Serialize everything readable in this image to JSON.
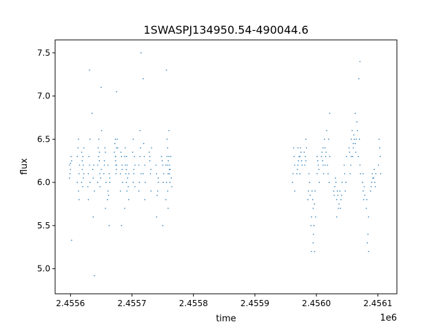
{
  "chart_data": {
    "type": "scatter",
    "title": "1SWASPJ134950.54-490044.6",
    "xlabel": "time",
    "ylabel": "flux",
    "x_offset_label": "1e6",
    "xlim": [
      2455575,
      2456131
    ],
    "ylim": [
      4.71,
      7.65
    ],
    "xticks": [
      2455600,
      2455700,
      2455800,
      2455900,
      2456000,
      2456100
    ],
    "xtick_labels": [
      "2.4556",
      "2.4557",
      "2.4558",
      "2.4559",
      "2.4560",
      "2.4561"
    ],
    "yticks": [
      5.0,
      5.5,
      6.0,
      6.5,
      7.0,
      7.5
    ],
    "ytick_labels": [
      "5.0",
      "5.5",
      "6.0",
      "6.5",
      "7.0",
      "7.5"
    ],
    "grid": false,
    "marker_color": "#1f77b4",
    "nights": [
      {
        "t": 2455600,
        "flux": [
          6.2,
          6.15,
          6.25,
          6.1,
          6.3,
          6.05,
          6.22,
          5.33
        ]
      },
      {
        "t": 2455613,
        "flux": [
          6.1,
          6.3,
          5.9,
          6.2,
          6.4,
          5.8,
          6.0,
          6.5
        ]
      },
      {
        "t": 2455620,
        "flux": [
          6.15,
          6.2,
          6.0,
          6.3,
          6.1,
          6.25,
          6.05,
          6.35,
          5.95,
          6.4
        ]
      },
      {
        "t": 2455630,
        "flux": [
          6.0,
          6.1,
          6.2,
          5.95,
          6.3,
          6.5,
          5.8,
          7.3
        ]
      },
      {
        "t": 2455637,
        "flux": [
          6.05,
          5.9,
          6.15,
          6.2,
          6.8,
          5.6,
          4.92
        ]
      },
      {
        "t": 2455646,
        "flux": [
          6.2,
          6.3,
          6.1,
          6.4,
          6.25,
          6.0,
          6.5
        ]
      },
      {
        "t": 2455649,
        "flux": [
          6.15,
          6.35,
          6.05,
          6.6,
          5.95,
          7.1
        ]
      },
      {
        "t": 2455656,
        "flux": [
          6.2,
          6.35,
          6.1,
          6.4,
          6.0,
          6.25,
          5.7
        ]
      },
      {
        "t": 2455662,
        "flux": [
          6.0,
          5.9,
          6.1,
          5.8,
          5.85,
          6.05,
          6.2,
          5.5
        ]
      },
      {
        "t": 2455673,
        "flux": [
          6.3,
          6.4,
          6.45,
          6.2,
          6.35,
          6.5,
          6.15
        ]
      },
      {
        "t": 2455675,
        "flux": [
          6.3,
          6.2,
          6.4,
          6.1,
          6.5,
          6.25,
          7.05
        ]
      },
      {
        "t": 2455683,
        "flux": [
          6.2,
          6.1,
          6.3,
          6.0,
          6.35,
          6.15,
          5.9,
          5.5
        ]
      },
      {
        "t": 2455690,
        "flux": [
          6.2,
          6.0,
          6.3,
          6.1,
          5.9,
          6.4,
          6.15,
          5.7
        ]
      },
      {
        "t": 2455693,
        "flux": [
          6.1,
          6.2,
          5.95,
          6.3,
          6.05,
          5.8
        ]
      },
      {
        "t": 2455703,
        "flux": [
          6.1,
          6.2,
          6.0,
          6.3,
          6.35,
          6.15,
          5.95,
          6.5
        ]
      },
      {
        "t": 2455713,
        "flux": [
          6.2,
          6.3,
          6.1,
          6.0,
          6.4,
          5.9,
          6.6,
          7.5
        ]
      },
      {
        "t": 2455720,
        "flux": [
          6.2,
          6.1,
          6.3,
          6.0,
          6.45,
          5.8,
          7.2
        ]
      },
      {
        "t": 2455730,
        "flux": [
          6.25,
          6.15,
          6.35,
          6.1,
          6.4,
          6.3,
          5.9
        ]
      },
      {
        "t": 2455741,
        "flux": [
          6.0,
          6.1,
          5.9,
          6.2,
          5.85,
          6.05,
          5.6
        ]
      },
      {
        "t": 2455750,
        "flux": [
          6.2,
          6.1,
          6.25,
          6.0,
          6.3,
          5.5
        ]
      },
      {
        "t": 2455757,
        "flux": [
          6.2,
          6.3,
          6.1,
          6.0,
          6.4,
          5.8,
          6.5,
          5.7,
          7.3
        ]
      },
      {
        "t": 2455760,
        "flux": [
          6.1,
          6.2,
          6.3,
          6.0,
          6.25,
          6.15,
          5.9,
          6.6
        ]
      },
      {
        "t": 2455763,
        "flux": [
          6.15,
          6.05,
          6.2,
          6.3,
          5.95
        ]
      },
      {
        "t": 2455963,
        "flux": [
          6.2,
          6.1,
          6.3,
          6.0,
          6.4,
          5.9
        ]
      },
      {
        "t": 2455970,
        "flux": [
          6.2,
          6.3,
          6.15,
          6.25,
          6.1,
          6.4
        ]
      },
      {
        "t": 2455975,
        "flux": [
          6.3,
          6.35,
          6.2,
          6.4,
          6.25,
          6.1
        ]
      },
      {
        "t": 2455982,
        "flux": [
          6.25,
          6.35,
          6.3,
          6.4,
          6.2,
          6.5
        ]
      },
      {
        "t": 2455988,
        "flux": [
          5.9,
          6.0,
          5.8,
          6.1,
          5.85
        ]
      },
      {
        "t": 2455993,
        "flux": [
          5.7,
          5.6,
          5.8,
          5.5,
          5.9,
          5.3,
          5.2
        ]
      },
      {
        "t": 2455997,
        "flux": [
          5.75,
          5.6,
          5.5,
          5.9,
          5.4,
          5.2
        ]
      },
      {
        "t": 2456003,
        "flux": [
          6.1,
          6.2,
          6.0,
          6.25,
          6.15,
          6.3
        ]
      },
      {
        "t": 2456010,
        "flux": [
          6.2,
          6.3,
          6.25,
          6.1,
          6.35,
          6.4
        ]
      },
      {
        "t": 2456015,
        "flux": [
          6.4,
          6.35,
          6.5,
          6.3,
          6.6,
          6.2
        ]
      },
      {
        "t": 2456020,
        "flux": [
          6.3,
          6.1,
          6.0,
          6.2,
          6.5,
          6.8
        ]
      },
      {
        "t": 2456030,
        "flux": [
          5.95,
          6.0,
          5.85,
          6.05,
          5.9
        ]
      },
      {
        "t": 2456035,
        "flux": [
          5.8,
          5.85,
          5.75,
          5.9,
          5.7,
          5.6
        ]
      },
      {
        "t": 2456040,
        "flux": [
          5.85,
          5.9,
          5.8,
          6.0,
          5.7
        ]
      },
      {
        "t": 2456047,
        "flux": [
          6.1,
          6.0,
          6.2,
          5.9,
          6.3
        ]
      },
      {
        "t": 2456055,
        "flux": [
          6.3,
          6.35,
          6.2,
          6.4,
          6.1,
          6.5
        ]
      },
      {
        "t": 2456060,
        "flux": [
          6.4,
          6.5,
          6.3,
          6.55,
          6.6,
          6.45
        ]
      },
      {
        "t": 2456065,
        "flux": [
          6.45,
          6.5,
          6.6,
          6.35,
          6.7,
          6.8
        ]
      },
      {
        "t": 2456070,
        "flux": [
          6.2,
          6.3,
          6.5,
          6.1,
          7.2,
          7.4
        ]
      },
      {
        "t": 2456077,
        "flux": [
          5.9,
          5.95,
          6.0,
          5.8,
          5.85,
          6.1
        ]
      },
      {
        "t": 2456083,
        "flux": [
          5.6,
          5.8,
          5.4,
          5.7,
          5.3,
          5.2
        ]
      },
      {
        "t": 2456090,
        "flux": [
          6.0,
          6.05,
          5.95,
          6.1,
          5.9
        ]
      },
      {
        "t": 2456095,
        "flux": [
          6.05,
          6.0,
          6.1,
          6.15,
          5.95
        ]
      },
      {
        "t": 2456103,
        "flux": [
          6.3,
          6.2,
          6.4,
          6.1,
          6.5
        ]
      }
    ]
  }
}
